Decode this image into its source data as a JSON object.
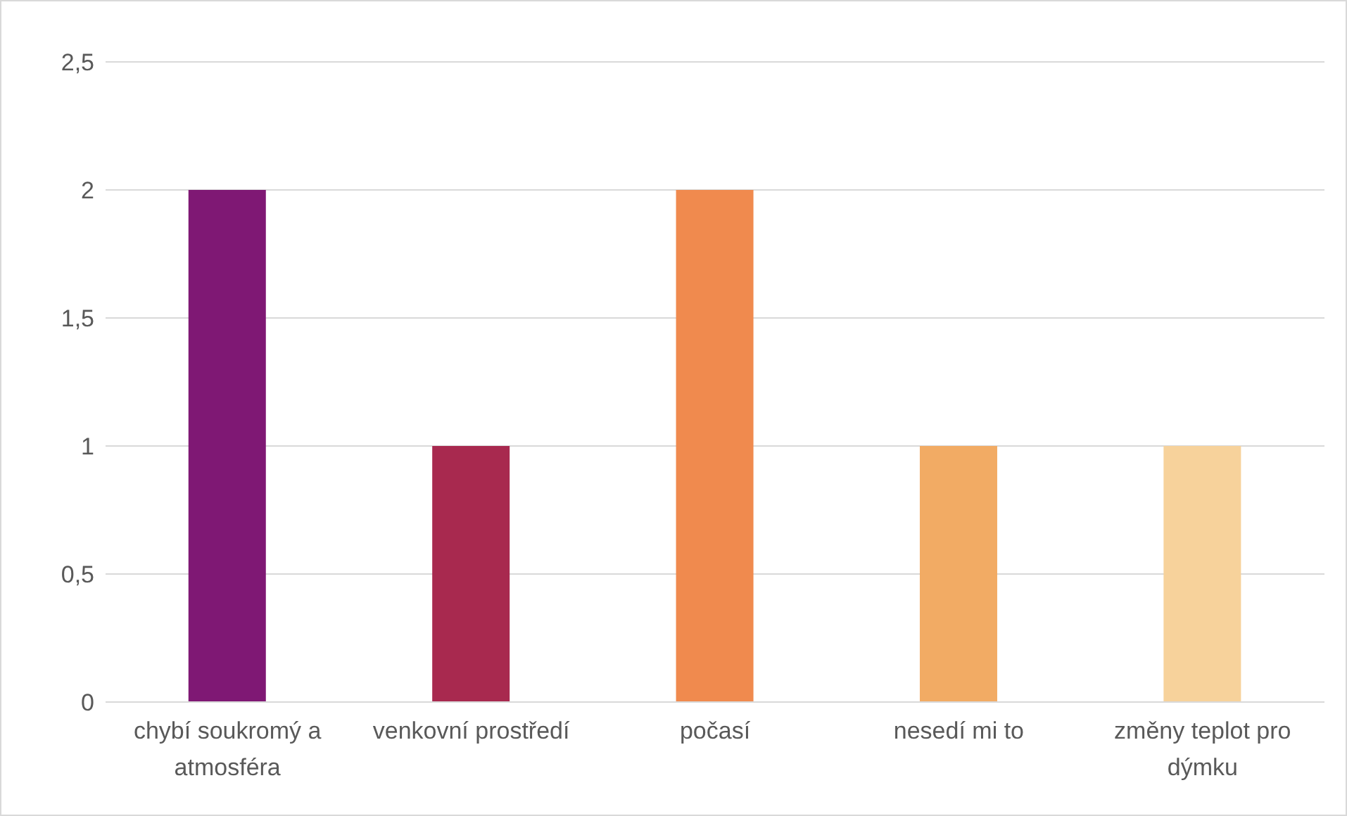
{
  "chart_data": {
    "type": "bar",
    "categories": [
      "chybí soukromý a atmosféra",
      "venkovní prostředí",
      "počasí",
      "nesedí mi to",
      "změny teplot pro dýmku"
    ],
    "values": [
      2,
      1,
      2,
      1,
      1
    ],
    "colors": [
      "#7f1874",
      "#a8294f",
      "#f08a4e",
      "#f2ab64",
      "#f7d29b"
    ],
    "ylim": [
      0,
      2.5
    ],
    "yticks": [
      0,
      {
        "value": 0.5,
        "label": "0,5"
      },
      1,
      {
        "value": 1.5,
        "label": "1,5"
      },
      2,
      {
        "value": 2.5,
        "label": "2,5"
      }
    ],
    "grid": "y",
    "legend": false
  }
}
